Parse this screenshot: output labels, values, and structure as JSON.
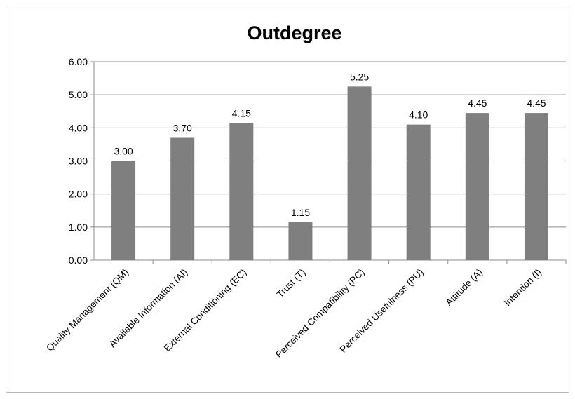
{
  "chart_data": {
    "type": "bar",
    "title": "Outdegree",
    "categories": [
      "Quality Management (QM)",
      "Available Information (AI)",
      "External Conditioning (EC)",
      "Trust (T)",
      "Perceived Compatibility (PC)",
      "Perceived Usefulness (PU)",
      "Attitude (A)",
      "Intention (I)"
    ],
    "values": [
      3.0,
      3.7,
      4.15,
      1.15,
      5.25,
      4.1,
      4.45,
      4.45
    ],
    "data_labels": [
      "3.00",
      "3.70",
      "4.15",
      "1.15",
      "5.25",
      "4.10",
      "4.45",
      "4.45"
    ],
    "yticks": [
      "0.00",
      "1.00",
      "2.00",
      "3.00",
      "4.00",
      "5.00",
      "6.00"
    ],
    "ylim": [
      0,
      6
    ],
    "grid": true,
    "legend": "none",
    "bar_color": "#7f7f7f",
    "grid_color": "#8c8c8c"
  }
}
